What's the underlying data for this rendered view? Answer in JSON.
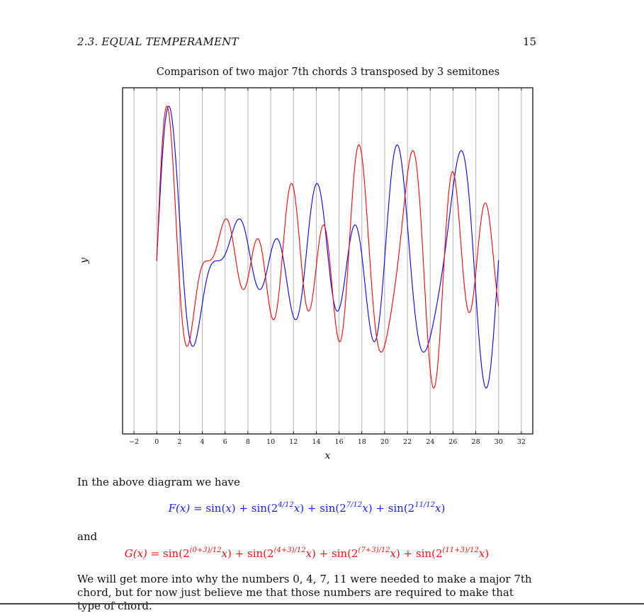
{
  "header": {
    "section": "2.3.  EQUAL TEMPERAMENT",
    "page_number": "15"
  },
  "chart_data": {
    "type": "line",
    "title": "Comparison of two major 7th chords 3 transposed by 3 semitones",
    "xlabel": "x",
    "ylabel": "y",
    "xlim": [
      -3,
      33
    ],
    "ylim": [
      -4.2,
      4.2
    ],
    "xticks": [
      "−2",
      "0",
      "2",
      "4",
      "6",
      "8",
      "10",
      "12",
      "14",
      "16",
      "18",
      "20",
      "22",
      "24",
      "26",
      "28",
      "30",
      "32"
    ],
    "xtick_values": [
      -2,
      0,
      2,
      4,
      6,
      8,
      10,
      12,
      14,
      16,
      18,
      20,
      22,
      24,
      26,
      28,
      30,
      32
    ],
    "grid": "vertical",
    "domain": [
      0,
      30
    ],
    "series": [
      {
        "color": "#0000ff",
        "exponents": [
          0,
          4,
          7,
          11
        ]
      },
      {
        "color": "#ff0000",
        "exponents": [
          3,
          7,
          10,
          14
        ]
      }
    ]
  },
  "body": {
    "intro": "In the above diagram we have",
    "eq_f": {
      "lhs": "F(x) = ",
      "terms": [
        "sin(x)",
        "sin(2^(4/12) x)",
        "sin(2^(7/12) x)",
        "sin(2^(11/12) x)"
      ]
    },
    "and_text": "and",
    "eq_g": {
      "lhs": "G(x) = ",
      "terms": [
        "sin(2^((0+3)/12) x)",
        "sin(2^((4+3)/12) x)",
        "sin(2^((7+3)/12) x)",
        "sin(2^((11+3)/12) x)"
      ]
    },
    "closing": "We will get more into why the numbers 0, 4, 7, 11 were needed to make a major 7th chord, but for now just believe me that those numbers are required to make that type of chord."
  }
}
